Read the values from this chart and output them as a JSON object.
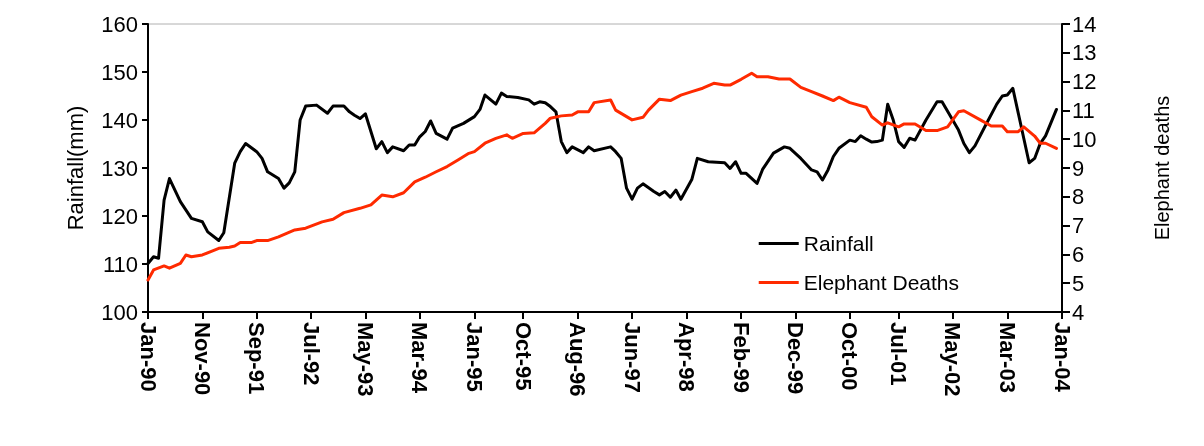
{
  "chart_data": {
    "type": "line",
    "ylabel": "Rainfall(mm)",
    "y2label": "Elephant deaths",
    "xlim": [
      "1990-01",
      "2004-01"
    ],
    "xticks": [
      {
        "value": "1990-01",
        "label": "Jan-90"
      },
      {
        "value": "1990-11",
        "label": "Nov-90"
      },
      {
        "value": "1991-09",
        "label": "Sep-91"
      },
      {
        "value": "1992-07",
        "label": "Jul-92"
      },
      {
        "value": "1993-05",
        "label": "May-93"
      },
      {
        "value": "1994-03",
        "label": "Mar-94"
      },
      {
        "value": "1995-01",
        "label": "Jan-95"
      },
      {
        "value": "1995-10",
        "label": "Oct-95"
      },
      {
        "value": "1996-08",
        "label": "Aug-96"
      },
      {
        "value": "1997-06",
        "label": "Jun-97"
      },
      {
        "value": "1998-04",
        "label": "Apr-98"
      },
      {
        "value": "1999-02",
        "label": "Feb-99"
      },
      {
        "value": "1999-12",
        "label": "Dec-99"
      },
      {
        "value": "2000-10",
        "label": "Oct-00"
      },
      {
        "value": "2001-07",
        "label": "Jul-01"
      },
      {
        "value": "2002-05",
        "label": "May-02"
      },
      {
        "value": "2003-03",
        "label": "Mar-03"
      },
      {
        "value": "2004-01",
        "label": "Jan-04"
      }
    ],
    "ylim": [
      100,
      160
    ],
    "yticks": [
      100,
      110,
      120,
      130,
      140,
      150,
      160
    ],
    "y2lim": [
      4,
      14
    ],
    "y2ticks": [
      4,
      5,
      6,
      7,
      8,
      9,
      10,
      11,
      12,
      13,
      14
    ],
    "legend": "bottom right",
    "grid": false,
    "marker": "none",
    "line_style": "solid",
    "series": [
      {
        "name": "Rainfall",
        "color": "#000000",
        "x": [
          "1990-01",
          "1990-02",
          "1990-03",
          "1990-04",
          "1990-05",
          "1990-07",
          "1990-09",
          "1990-11",
          "1990-12",
          "1991-02",
          "1991-03",
          "1991-05",
          "1991-06",
          "1991-07",
          "1991-09",
          "1991-10",
          "1991-11",
          "1992-01",
          "1992-02",
          "1992-03",
          "1992-04",
          "1992-05",
          "1992-06",
          "1992-08",
          "1992-10",
          "1992-11",
          "1993-01",
          "1993-02",
          "1993-03",
          "1993-04",
          "1993-05",
          "1993-07",
          "1993-08",
          "1993-09",
          "1993-10",
          "1993-12",
          "1994-01",
          "1994-02",
          "1994-03",
          "1994-04",
          "1994-05",
          "1994-06",
          "1994-08",
          "1994-09",
          "1994-11",
          "1995-01",
          "1995-02",
          "1995-03",
          "1995-05",
          "1995-06",
          "1995-07",
          "1995-09",
          "1995-11",
          "1995-12",
          "1996-01",
          "1996-02",
          "1996-03",
          "1996-04",
          "1996-05",
          "1996-06",
          "1996-07",
          "1996-09",
          "1996-10",
          "1996-11",
          "1997-02",
          "1997-03",
          "1997-04",
          "1997-05",
          "1997-06",
          "1997-07",
          "1997-08",
          "1997-10",
          "1997-11",
          "1997-12",
          "1998-01",
          "1998-02",
          "1998-03",
          "1998-05",
          "1998-06",
          "1998-08",
          "1998-11",
          "1998-12",
          "1999-01",
          "1999-02",
          "1999-03",
          "1999-05",
          "1999-06",
          "1999-08",
          "1999-10",
          "1999-11",
          "2000-01",
          "2000-03",
          "2000-04",
          "2000-05",
          "2000-06",
          "2000-07",
          "2000-08",
          "2000-10",
          "2000-11",
          "2000-12",
          "2001-01",
          "2001-02",
          "2001-03",
          "2001-04",
          "2001-05",
          "2001-06",
          "2001-07",
          "2001-08",
          "2001-09",
          "2001-10",
          "2001-12",
          "2002-02",
          "2002-03",
          "2002-06",
          "2002-07",
          "2002-08",
          "2002-09",
          "2002-11",
          "2003-01",
          "2003-02",
          "2003-03",
          "2003-04",
          "2003-07",
          "2003-08",
          "2003-09",
          "2003-10",
          "2003-12"
        ],
        "values": [
          110.1,
          111.5,
          111.2,
          123.3,
          127.8,
          123.0,
          119.5,
          118.8,
          116.7,
          114.9,
          116.5,
          131.0,
          133.4,
          135.1,
          133.4,
          132.0,
          129.2,
          127.8,
          125.8,
          126.9,
          129.2,
          140.0,
          142.9,
          143.1,
          141.4,
          142.9,
          142.9,
          141.7,
          141.0,
          140.3,
          141.3,
          134.0,
          135.5,
          133.2,
          134.4,
          133.6,
          134.8,
          134.8,
          136.5,
          137.6,
          139.8,
          137.2,
          136.0,
          138.3,
          139.3,
          140.7,
          142.2,
          145.2,
          143.3,
          145.6,
          144.9,
          144.7,
          144.2,
          143.3,
          143.8,
          143.6,
          142.8,
          141.7,
          135.5,
          133.2,
          134.4,
          133.2,
          134.4,
          133.6,
          134.4,
          133.4,
          132.0,
          125.8,
          123.5,
          125.8,
          126.7,
          125.1,
          124.4,
          125.1,
          123.9,
          125.4,
          123.5,
          127.6,
          132.0,
          131.3,
          131.1,
          129.9,
          131.3,
          128.9,
          128.9,
          126.8,
          129.7,
          133.1,
          134.4,
          134.1,
          132.0,
          129.6,
          129.2,
          127.5,
          129.6,
          132.4,
          134.1,
          135.8,
          135.5,
          136.7,
          136.0,
          135.4,
          135.5,
          135.8,
          143.3,
          140.0,
          135.5,
          134.3,
          136.2,
          135.8,
          140.0,
          143.8,
          143.8,
          137.9,
          135.1,
          133.2,
          134.6,
          139.0,
          143.3,
          145.0,
          145.2,
          146.6,
          131.1,
          132.0,
          135.1,
          136.7,
          142.2
        ]
      },
      {
        "name": "Elephant Deaths",
        "color": "#ff2a00",
        "axis": "y2",
        "x": [
          "1990-01",
          "1990-02",
          "1990-04",
          "1990-05",
          "1990-07",
          "1990-08",
          "1990-09",
          "1990-11",
          "1991-01",
          "1991-02",
          "1991-04",
          "1991-05",
          "1991-06",
          "1991-08",
          "1991-09",
          "1991-11",
          "1992-01",
          "1992-04",
          "1992-06",
          "1992-09",
          "1992-11",
          "1993-01",
          "1993-04",
          "1993-06",
          "1993-08",
          "1993-10",
          "1993-12",
          "1994-02",
          "1994-04",
          "1994-06",
          "1994-08",
          "1994-10",
          "1994-12",
          "1995-01",
          "1995-03",
          "1995-05",
          "1995-07",
          "1995-08",
          "1995-10",
          "1995-12",
          "1996-02",
          "1996-03",
          "1996-05",
          "1996-07",
          "1996-08",
          "1996-10",
          "1996-11",
          "1997-02",
          "1997-03",
          "1997-06",
          "1997-08",
          "1997-09",
          "1997-11",
          "1998-01",
          "1998-03",
          "1998-05",
          "1998-07",
          "1998-09",
          "1998-11",
          "1998-12",
          "1999-02",
          "1999-04",
          "1999-05",
          "1999-07",
          "1999-09",
          "1999-11",
          "2000-01",
          "2000-03",
          "2000-05",
          "2000-07",
          "2000-08",
          "2000-10",
          "2001-01",
          "2001-02",
          "2001-04",
          "2001-05",
          "2001-07",
          "2001-08",
          "2001-10",
          "2001-12",
          "2002-02",
          "2002-04",
          "2002-06",
          "2002-07",
          "2002-10",
          "2002-12",
          "2003-02",
          "2003-03",
          "2003-05",
          "2003-06",
          "2003-08",
          "2003-09",
          "2003-10",
          "2003-12"
        ],
        "values": [
          5.11,
          5.46,
          5.6,
          5.52,
          5.69,
          5.98,
          5.92,
          5.98,
          6.13,
          6.21,
          6.25,
          6.29,
          6.41,
          6.41,
          6.48,
          6.48,
          6.61,
          6.85,
          6.91,
          7.13,
          7.22,
          7.45,
          7.6,
          7.72,
          8.06,
          8.0,
          8.14,
          8.52,
          8.68,
          8.87,
          9.05,
          9.28,
          9.51,
          9.57,
          9.86,
          10.03,
          10.15,
          10.03,
          10.2,
          10.22,
          10.55,
          10.73,
          10.81,
          10.84,
          10.95,
          10.95,
          11.27,
          11.36,
          11.01,
          10.67,
          10.76,
          11.01,
          11.39,
          11.34,
          11.53,
          11.65,
          11.77,
          11.94,
          11.88,
          11.88,
          12.08,
          12.29,
          12.17,
          12.17,
          12.09,
          12.09,
          11.8,
          11.65,
          11.5,
          11.34,
          11.46,
          11.27,
          11.11,
          10.78,
          10.49,
          10.57,
          10.43,
          10.53,
          10.53,
          10.3,
          10.3,
          10.43,
          10.95,
          10.99,
          10.67,
          10.46,
          10.46,
          10.26,
          10.26,
          10.43,
          10.11,
          9.86,
          9.86,
          9.68
        ]
      }
    ]
  }
}
